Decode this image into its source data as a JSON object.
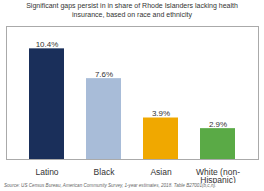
{
  "chart_data": {
    "type": "bar",
    "title": "Significant gaps persist in in share of Rhode Islanders lacking health\ninsurance, based on race and ethnicity",
    "categories": [
      "Latino",
      "Black",
      "Asian",
      "White (non-\nHispanic)"
    ],
    "values": [
      10.4,
      7.6,
      3.9,
      2.9
    ],
    "colors": [
      "#1a2f5a",
      "#a8bcd8",
      "#f0a800",
      "#5aaa46"
    ],
    "value_labels": [
      "10.4%",
      "7.6%",
      "3.9%",
      "2.9%"
    ],
    "data_labels": true,
    "ylim": [
      0,
      12.5
    ],
    "tick_labels": "x",
    "grid": false,
    "source": "Source: US Census Bureau, American Community Survey, 1-year estimates, 2018. Table B27001(b,c,n)."
  }
}
